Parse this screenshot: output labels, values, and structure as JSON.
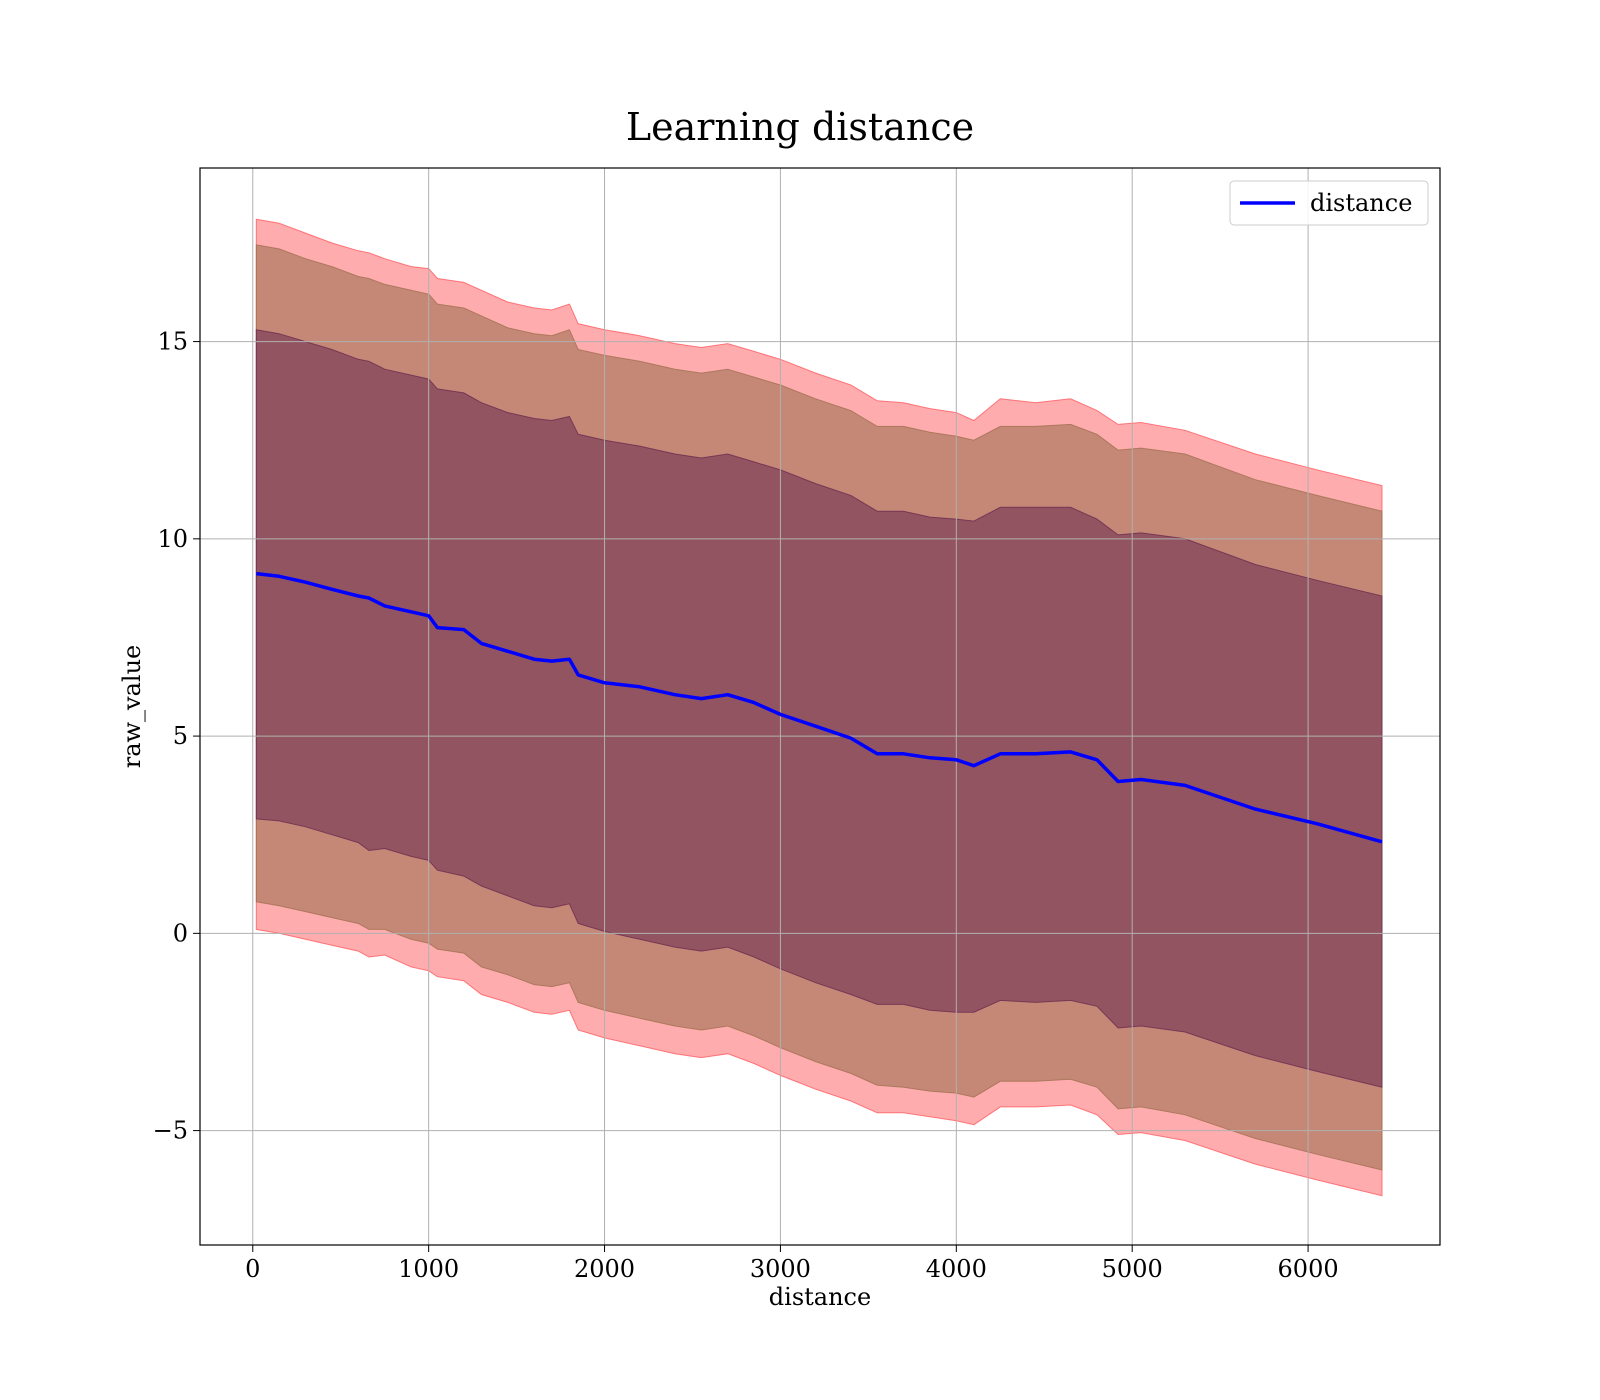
{
  "chart_data": {
    "type": "line",
    "title": "Learning distance",
    "xlabel": "distance",
    "ylabel": "raw_value",
    "xlim": [
      -300,
      6750
    ],
    "ylim": [
      -7.9,
      19.4
    ],
    "x_ticks": [
      0,
      1000,
      2000,
      3000,
      4000,
      5000,
      6000
    ],
    "x_tick_labels": [
      "0",
      "1000",
      "2000",
      "3000",
      "4000",
      "5000",
      "6000"
    ],
    "y_ticks": [
      -5,
      0,
      5,
      10,
      15
    ],
    "y_tick_labels": [
      "−5",
      "0",
      "5",
      "10",
      "15"
    ],
    "grid": true,
    "legend": {
      "position": "top-right",
      "entries": [
        "distance"
      ]
    },
    "colors": {
      "line": "#0000ff",
      "band_outer": "#ff5a5f",
      "band_middle": "#a07050",
      "band_inner": "#6a2a50"
    },
    "x": [
      20,
      150,
      300,
      450,
      600,
      660,
      750,
      900,
      1000,
      1050,
      1200,
      1300,
      1450,
      1600,
      1700,
      1800,
      1850,
      2000,
      2200,
      2400,
      2550,
      2700,
      2850,
      3000,
      3200,
      3400,
      3550,
      3700,
      3850,
      4000,
      4100,
      4250,
      4450,
      4650,
      4800,
      4920,
      5050,
      5300,
      5700,
      6050,
      6420
    ],
    "series": [
      {
        "name": "distance",
        "values": [
          9.12,
          9.05,
          8.9,
          8.72,
          8.55,
          8.5,
          8.3,
          8.15,
          8.05,
          7.75,
          7.7,
          7.35,
          7.15,
          6.95,
          6.9,
          6.95,
          6.55,
          6.35,
          6.25,
          6.05,
          5.95,
          6.05,
          5.85,
          5.55,
          5.25,
          4.95,
          4.55,
          4.55,
          4.45,
          4.4,
          4.25,
          4.55,
          4.55,
          4.6,
          4.4,
          3.85,
          3.9,
          3.75,
          3.15,
          2.78,
          2.32
        ]
      }
    ],
    "bands": [
      {
        "upper": [
          18.1,
          18.0,
          17.75,
          17.5,
          17.3,
          17.25,
          17.1,
          16.9,
          16.85,
          16.6,
          16.5,
          16.3,
          16.0,
          15.85,
          15.8,
          15.95,
          15.45,
          15.3,
          15.15,
          14.95,
          14.85,
          14.95,
          14.75,
          14.55,
          14.2,
          13.9,
          13.5,
          13.45,
          13.3,
          13.2,
          13.0,
          13.55,
          13.45,
          13.55,
          13.25,
          12.9,
          12.95,
          12.75,
          12.15,
          11.75,
          11.35
        ],
        "lower": [
          0.1,
          0.0,
          -0.15,
          -0.3,
          -0.45,
          -0.6,
          -0.55,
          -0.85,
          -0.95,
          -1.1,
          -1.2,
          -1.55,
          -1.75,
          -2.0,
          -2.05,
          -1.95,
          -2.45,
          -2.65,
          -2.85,
          -3.05,
          -3.15,
          -3.05,
          -3.3,
          -3.6,
          -3.95,
          -4.25,
          -4.55,
          -4.55,
          -4.65,
          -4.75,
          -4.85,
          -4.4,
          -4.4,
          -4.35,
          -4.6,
          -5.1,
          -5.05,
          -5.25,
          -5.85,
          -6.25,
          -6.65
        ]
      },
      {
        "upper": [
          17.45,
          17.35,
          17.1,
          16.9,
          16.65,
          16.6,
          16.45,
          16.3,
          16.2,
          15.95,
          15.85,
          15.65,
          15.35,
          15.2,
          15.15,
          15.3,
          14.8,
          14.65,
          14.5,
          14.3,
          14.2,
          14.3,
          14.1,
          13.9,
          13.55,
          13.25,
          12.85,
          12.85,
          12.7,
          12.6,
          12.5,
          12.85,
          12.85,
          12.9,
          12.65,
          12.25,
          12.3,
          12.15,
          11.5,
          11.1,
          10.7
        ],
        "lower": [
          0.8,
          0.7,
          0.55,
          0.4,
          0.25,
          0.1,
          0.1,
          -0.15,
          -0.25,
          -0.4,
          -0.5,
          -0.85,
          -1.05,
          -1.3,
          -1.35,
          -1.25,
          -1.75,
          -1.95,
          -2.15,
          -2.35,
          -2.45,
          -2.35,
          -2.6,
          -2.9,
          -3.25,
          -3.55,
          -3.85,
          -3.9,
          -4.0,
          -4.05,
          -4.15,
          -3.75,
          -3.75,
          -3.7,
          -3.9,
          -4.45,
          -4.4,
          -4.6,
          -5.2,
          -5.6,
          -6.0
        ]
      },
      {
        "upper": [
          15.3,
          15.2,
          15.0,
          14.8,
          14.55,
          14.5,
          14.3,
          14.15,
          14.05,
          13.8,
          13.7,
          13.45,
          13.2,
          13.05,
          13.0,
          13.1,
          12.65,
          12.5,
          12.35,
          12.15,
          12.05,
          12.15,
          11.95,
          11.75,
          11.4,
          11.1,
          10.7,
          10.7,
          10.55,
          10.5,
          10.45,
          10.8,
          10.8,
          10.8,
          10.5,
          10.1,
          10.15,
          10.0,
          9.35,
          8.95,
          8.55
        ],
        "lower": [
          2.9,
          2.85,
          2.7,
          2.5,
          2.3,
          2.1,
          2.15,
          1.95,
          1.85,
          1.6,
          1.45,
          1.2,
          0.95,
          0.7,
          0.65,
          0.75,
          0.25,
          0.05,
          -0.15,
          -0.35,
          -0.45,
          -0.35,
          -0.6,
          -0.9,
          -1.25,
          -1.55,
          -1.8,
          -1.8,
          -1.95,
          -2.0,
          -2.0,
          -1.7,
          -1.75,
          -1.7,
          -1.85,
          -2.4,
          -2.35,
          -2.5,
          -3.1,
          -3.5,
          -3.9
        ]
      }
    ]
  }
}
